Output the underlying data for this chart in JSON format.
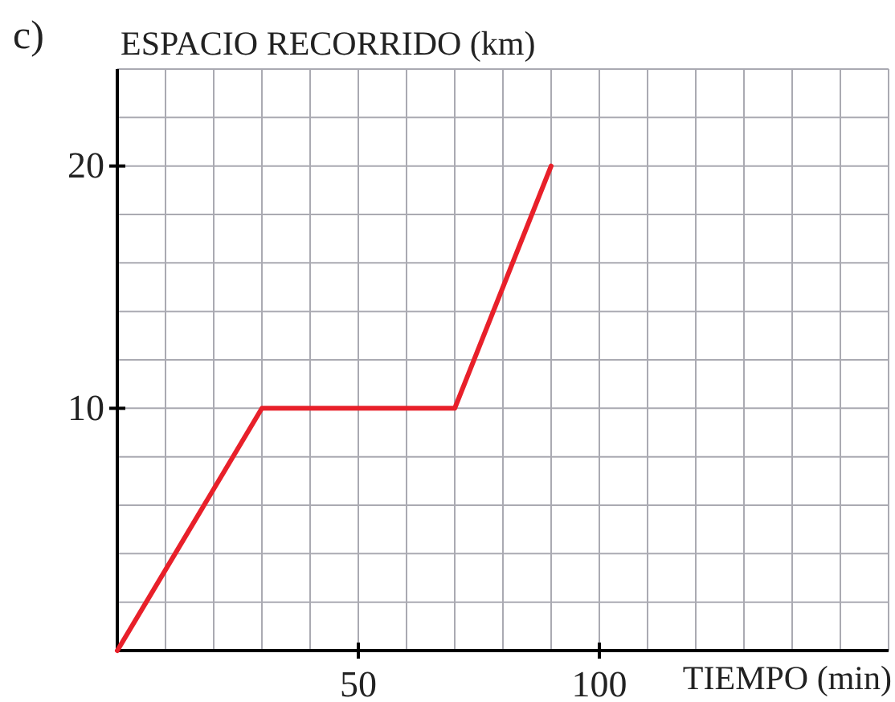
{
  "chart_data": {
    "type": "line",
    "ylabel": "ESPACIO RECORRIDO (km)",
    "xlabel": "TIEMPO (min)",
    "annotations": [
      "c)"
    ],
    "x": [
      0,
      30,
      70,
      90
    ],
    "series": [
      {
        "color": "#e8202a",
        "values": [
          0,
          10,
          10,
          20
        ]
      }
    ],
    "xlim": [
      0,
      160
    ],
    "ylim": [
      0,
      24
    ],
    "xticks": [
      {
        "value": 10,
        "label": null
      },
      {
        "value": 20,
        "label": null
      },
      {
        "value": 30,
        "label": null
      },
      {
        "value": 40,
        "label": null
      },
      50,
      {
        "value": 60,
        "label": null
      },
      {
        "value": 70,
        "label": null
      },
      {
        "value": 80,
        "label": null
      },
      {
        "value": 90,
        "label": null
      },
      100,
      {
        "value": 110,
        "label": null
      },
      {
        "value": 120,
        "label": null
      },
      {
        "value": 130,
        "label": null
      },
      {
        "value": 140,
        "label": null
      },
      {
        "value": 150,
        "label": null
      },
      {
        "value": 160,
        "label": null
      }
    ],
    "yticks": [
      {
        "value": 2,
        "label": null
      },
      {
        "value": 4,
        "label": null
      },
      {
        "value": 6,
        "label": null
      },
      {
        "value": 8,
        "label": null
      },
      10,
      {
        "value": 12,
        "label": null
      },
      {
        "value": 14,
        "label": null
      },
      {
        "value": 16,
        "label": null
      },
      {
        "value": 18,
        "label": null
      },
      20,
      {
        "value": 22,
        "label": null
      },
      {
        "value": 24,
        "label": null
      }
    ],
    "grid": true,
    "marker": "none",
    "line_style": "solid"
  }
}
